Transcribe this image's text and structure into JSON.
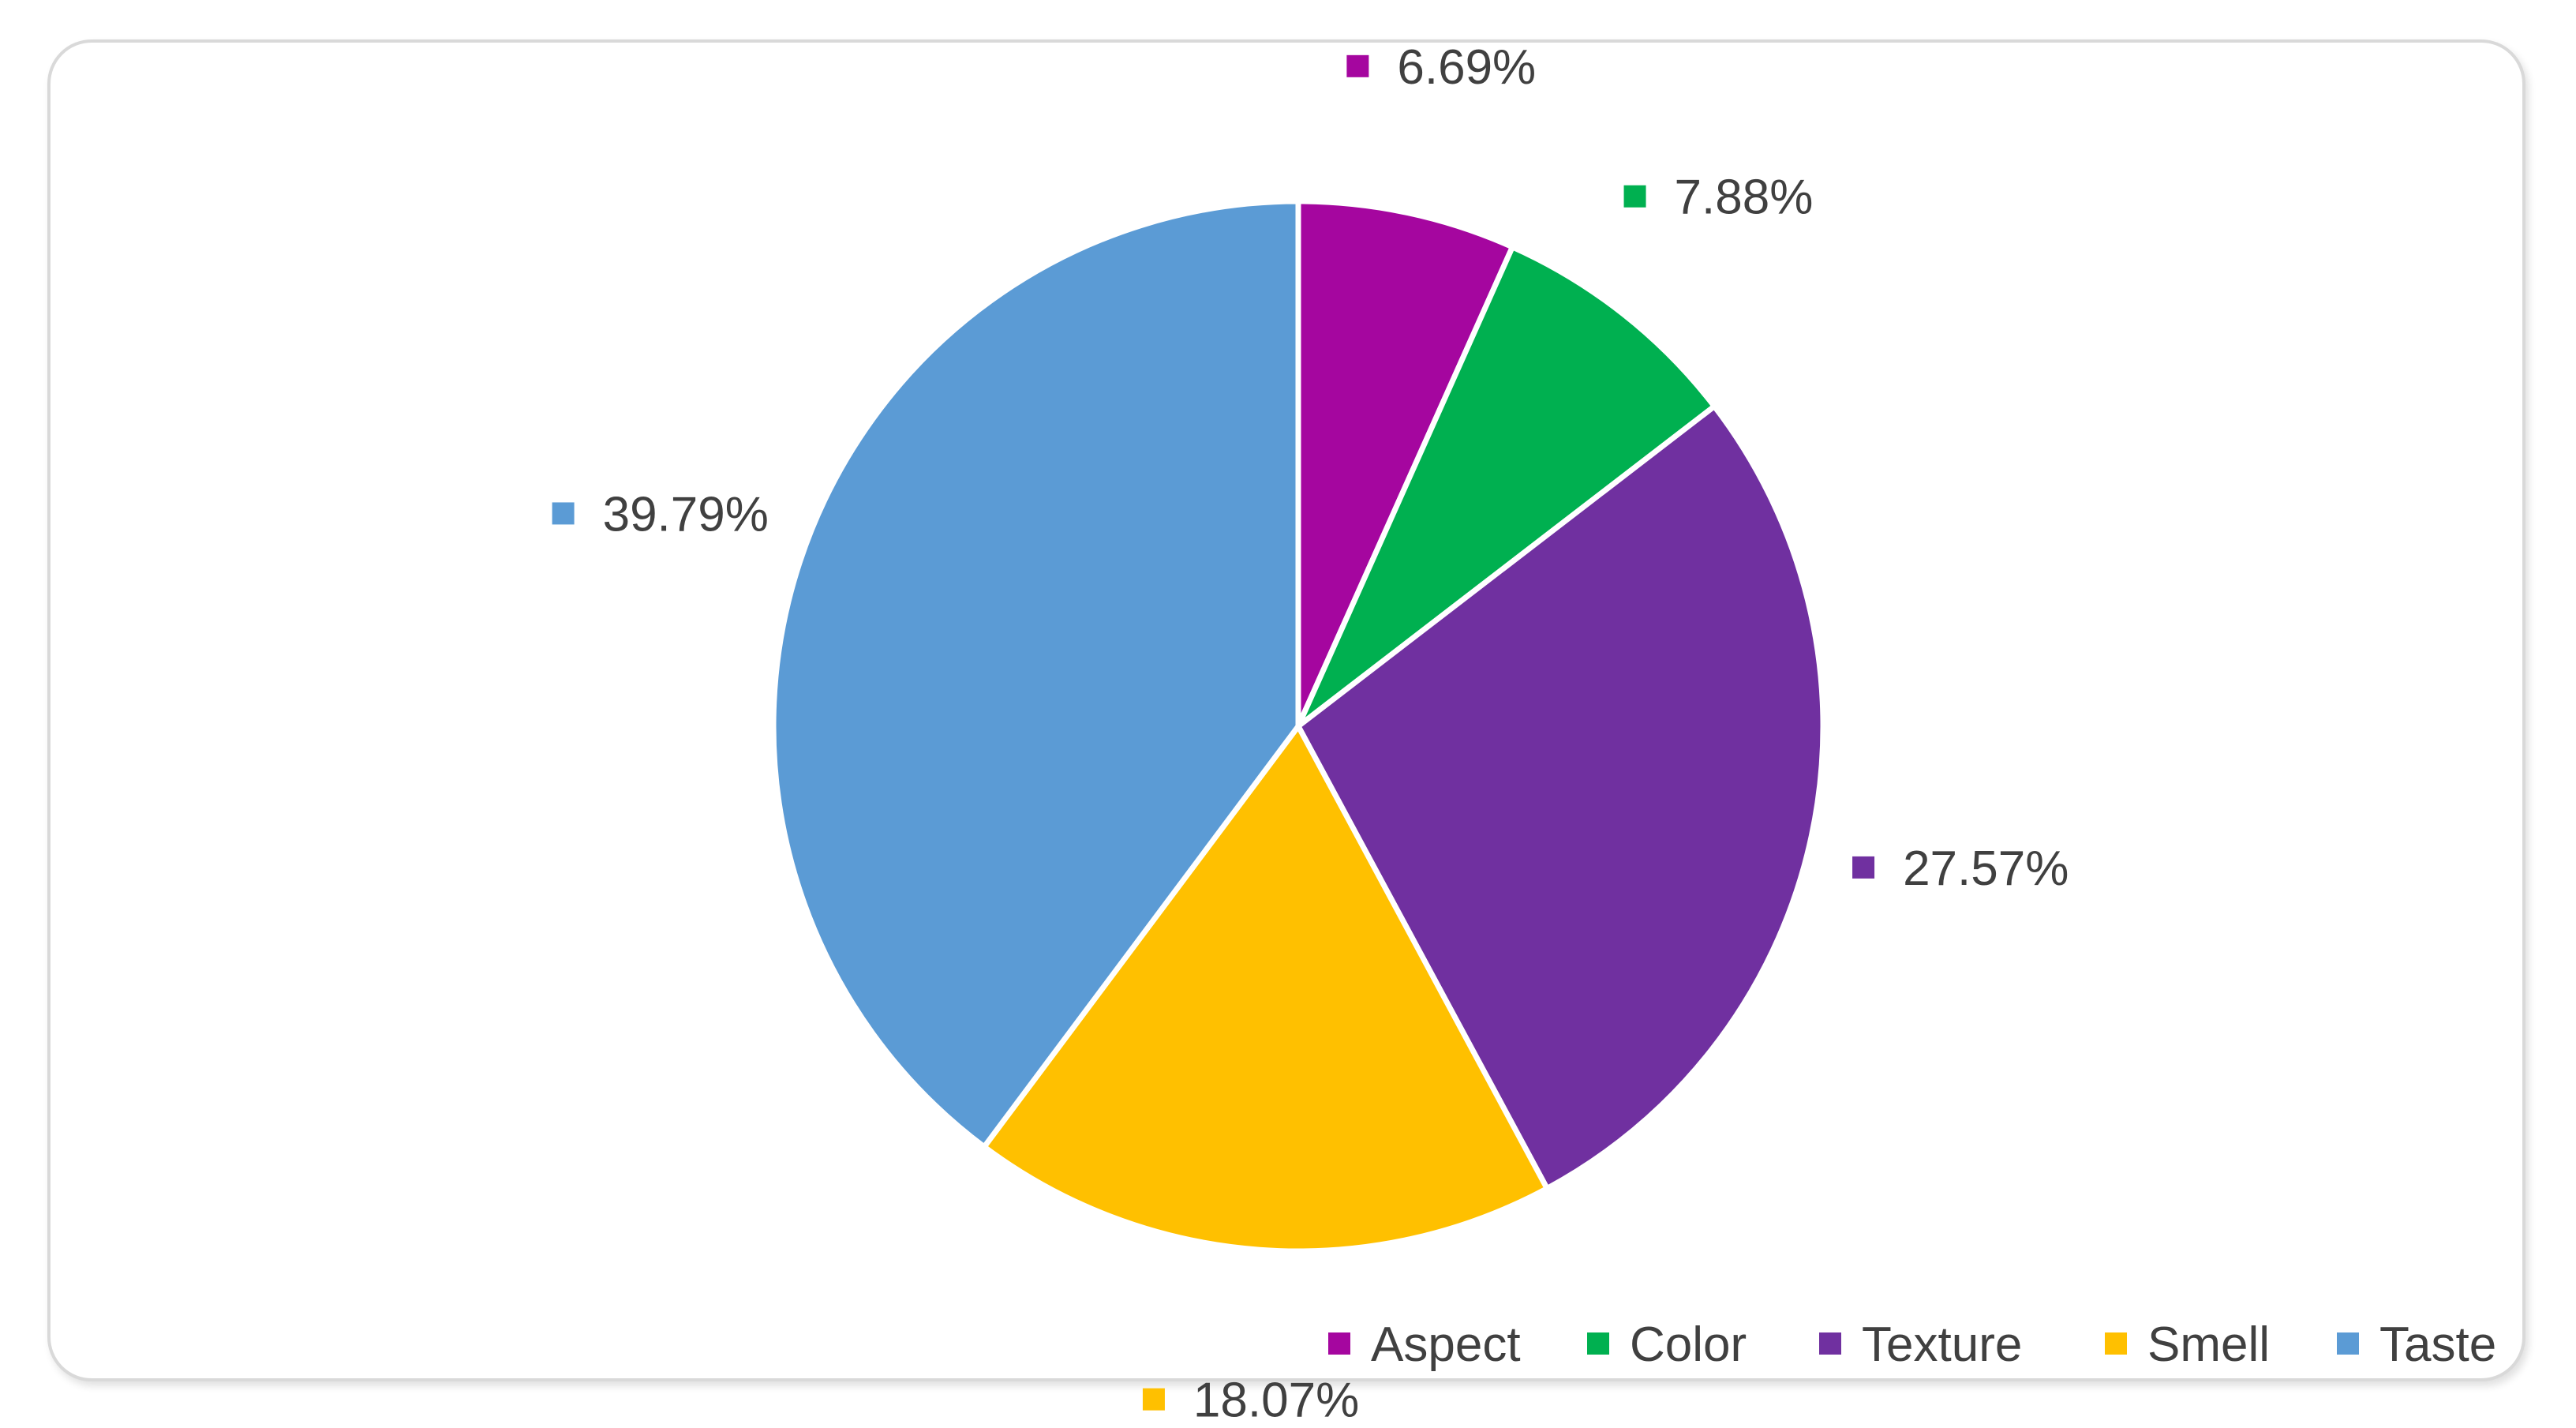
{
  "chart_data": {
    "type": "pie",
    "title": "",
    "slices": [
      {
        "name": "Aspect",
        "value": 6.69,
        "label": "6.69%",
        "color": "#A5069F"
      },
      {
        "name": "Color",
        "value": 7.88,
        "label": "7.88%",
        "color": "#00B050"
      },
      {
        "name": "Texture",
        "value": 27.57,
        "label": "27.57%",
        "color": "#7030A0"
      },
      {
        "name": "Smell",
        "value": 18.07,
        "label": "18.07%",
        "color": "#FFC000"
      },
      {
        "name": "Taste",
        "value": 39.79,
        "label": "39.79%",
        "color": "#5B9BD5"
      }
    ],
    "start_angle": "12 o'clock",
    "direction": "clockwise",
    "legend": {
      "position": "bottom-right"
    },
    "data_labels": "outside-with-marker"
  }
}
